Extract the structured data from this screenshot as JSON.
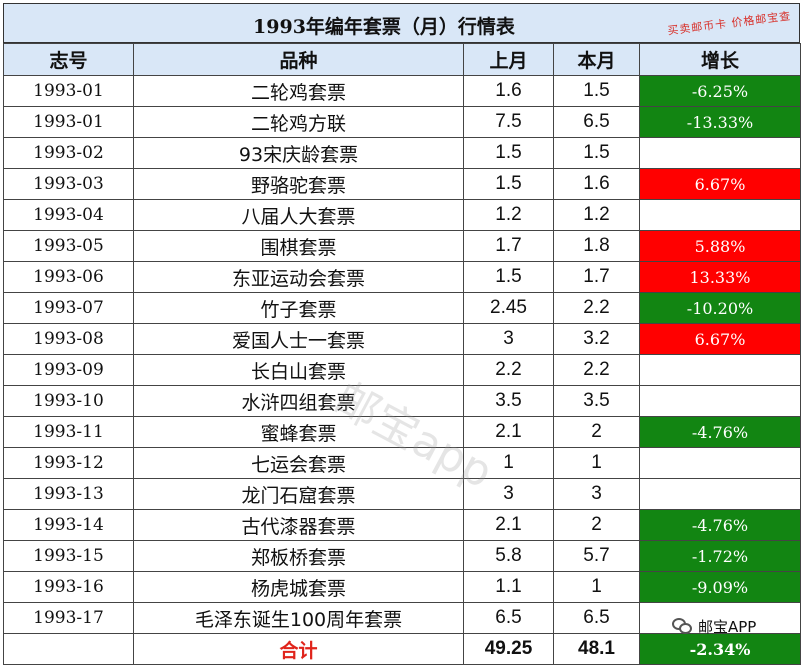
{
  "title": "1993年编年套票（月）行情表",
  "stamp": "买卖邮币卡 价格邮宝查",
  "watermark": "邮宝app",
  "badge_text": "邮宝APP",
  "headers": [
    "志号",
    "品种",
    "上月",
    "本月",
    "增长"
  ],
  "colors": {
    "header_bg": "#d9e7f7",
    "decrease": "#128512",
    "increase": "#ff0000"
  },
  "rows": [
    {
      "code": "1993-01",
      "name": "二轮鸡套票",
      "last": "1.6",
      "this": "1.5",
      "growth": "-6.25%",
      "trend": "neg"
    },
    {
      "code": "1993-01",
      "name": "二轮鸡方联",
      "last": "7.5",
      "this": "6.5",
      "growth": "-13.33%",
      "trend": "neg"
    },
    {
      "code": "1993-02",
      "name": "93宋庆龄套票",
      "last": "1.5",
      "this": "1.5",
      "growth": "",
      "trend": "none"
    },
    {
      "code": "1993-03",
      "name": "野骆驼套票",
      "last": "1.5",
      "this": "1.6",
      "growth": "6.67%",
      "trend": "pos"
    },
    {
      "code": "1993-04",
      "name": "八届人大套票",
      "last": "1.2",
      "this": "1.2",
      "growth": "",
      "trend": "none"
    },
    {
      "code": "1993-05",
      "name": "围棋套票",
      "last": "1.7",
      "this": "1.8",
      "growth": "5.88%",
      "trend": "pos"
    },
    {
      "code": "1993-06",
      "name": "东亚运动会套票",
      "last": "1.5",
      "this": "1.7",
      "growth": "13.33%",
      "trend": "pos"
    },
    {
      "code": "1993-07",
      "name": "竹子套票",
      "last": "2.45",
      "this": "2.2",
      "growth": "-10.20%",
      "trend": "neg"
    },
    {
      "code": "1993-08",
      "name": "爱国人士一套票",
      "last": "3",
      "this": "3.2",
      "growth": "6.67%",
      "trend": "pos"
    },
    {
      "code": "1993-09",
      "name": "长白山套票",
      "last": "2.2",
      "this": "2.2",
      "growth": "",
      "trend": "none"
    },
    {
      "code": "1993-10",
      "name": "水浒四组套票",
      "last": "3.5",
      "this": "3.5",
      "growth": "",
      "trend": "none"
    },
    {
      "code": "1993-11",
      "name": "蜜蜂套票",
      "last": "2.1",
      "this": "2",
      "growth": "-4.76%",
      "trend": "neg"
    },
    {
      "code": "1993-12",
      "name": "七运会套票",
      "last": "1",
      "this": "1",
      "growth": "",
      "trend": "none"
    },
    {
      "code": "1993-13",
      "name": "龙门石窟套票",
      "last": "3",
      "this": "3",
      "growth": "",
      "trend": "none"
    },
    {
      "code": "1993-14",
      "name": "古代漆器套票",
      "last": "2.1",
      "this": "2",
      "growth": "-4.76%",
      "trend": "neg"
    },
    {
      "code": "1993-15",
      "name": "郑板桥套票",
      "last": "5.8",
      "this": "5.7",
      "growth": "-1.72%",
      "trend": "neg"
    },
    {
      "code": "1993-16",
      "name": "杨虎城套票",
      "last": "1.1",
      "this": "1",
      "growth": "-9.09%",
      "trend": "neg"
    },
    {
      "code": "1993-17",
      "name": "毛泽东诞生100周年套票",
      "last": "6.5",
      "this": "6.5",
      "growth": "",
      "trend": "none"
    }
  ],
  "total": {
    "label": "合计",
    "last": "49.25",
    "this": "48.1",
    "growth": "-2.34%",
    "trend": "neg"
  }
}
